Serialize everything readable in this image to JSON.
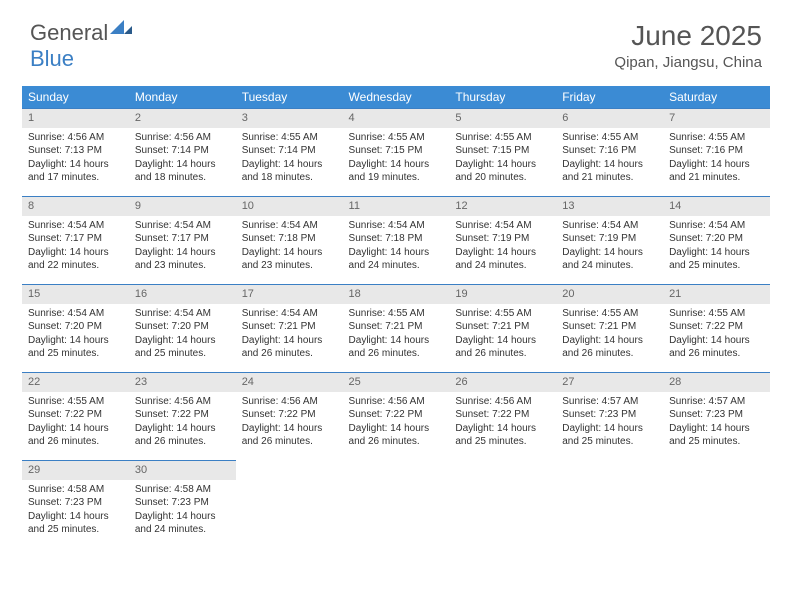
{
  "logo": {
    "text1": "General",
    "text2": "Blue"
  },
  "title": "June 2025",
  "location": "Qipan, Jiangsu, China",
  "colors": {
    "header_bg": "#3b8bd4",
    "header_text": "#ffffff",
    "daynum_bg": "#e8e8e8",
    "daynum_text": "#666666",
    "border": "#3b7fc4",
    "body_text": "#333333",
    "logo_gray": "#555555",
    "logo_blue": "#3b7fc4"
  },
  "typography": {
    "title_fontsize": 28,
    "location_fontsize": 15,
    "header_fontsize": 12,
    "daynum_fontsize": 11,
    "cell_fontsize": 10
  },
  "weekdays": [
    "Sunday",
    "Monday",
    "Tuesday",
    "Wednesday",
    "Thursday",
    "Friday",
    "Saturday"
  ],
  "weeks": [
    [
      {
        "n": "1",
        "sr": "4:56 AM",
        "ss": "7:13 PM",
        "dl": "14 hours and 17 minutes."
      },
      {
        "n": "2",
        "sr": "4:56 AM",
        "ss": "7:14 PM",
        "dl": "14 hours and 18 minutes."
      },
      {
        "n": "3",
        "sr": "4:55 AM",
        "ss": "7:14 PM",
        "dl": "14 hours and 18 minutes."
      },
      {
        "n": "4",
        "sr": "4:55 AM",
        "ss": "7:15 PM",
        "dl": "14 hours and 19 minutes."
      },
      {
        "n": "5",
        "sr": "4:55 AM",
        "ss": "7:15 PM",
        "dl": "14 hours and 20 minutes."
      },
      {
        "n": "6",
        "sr": "4:55 AM",
        "ss": "7:16 PM",
        "dl": "14 hours and 21 minutes."
      },
      {
        "n": "7",
        "sr": "4:55 AM",
        "ss": "7:16 PM",
        "dl": "14 hours and 21 minutes."
      }
    ],
    [
      {
        "n": "8",
        "sr": "4:54 AM",
        "ss": "7:17 PM",
        "dl": "14 hours and 22 minutes."
      },
      {
        "n": "9",
        "sr": "4:54 AM",
        "ss": "7:17 PM",
        "dl": "14 hours and 23 minutes."
      },
      {
        "n": "10",
        "sr": "4:54 AM",
        "ss": "7:18 PM",
        "dl": "14 hours and 23 minutes."
      },
      {
        "n": "11",
        "sr": "4:54 AM",
        "ss": "7:18 PM",
        "dl": "14 hours and 24 minutes."
      },
      {
        "n": "12",
        "sr": "4:54 AM",
        "ss": "7:19 PM",
        "dl": "14 hours and 24 minutes."
      },
      {
        "n": "13",
        "sr": "4:54 AM",
        "ss": "7:19 PM",
        "dl": "14 hours and 24 minutes."
      },
      {
        "n": "14",
        "sr": "4:54 AM",
        "ss": "7:20 PM",
        "dl": "14 hours and 25 minutes."
      }
    ],
    [
      {
        "n": "15",
        "sr": "4:54 AM",
        "ss": "7:20 PM",
        "dl": "14 hours and 25 minutes."
      },
      {
        "n": "16",
        "sr": "4:54 AM",
        "ss": "7:20 PM",
        "dl": "14 hours and 25 minutes."
      },
      {
        "n": "17",
        "sr": "4:54 AM",
        "ss": "7:21 PM",
        "dl": "14 hours and 26 minutes."
      },
      {
        "n": "18",
        "sr": "4:55 AM",
        "ss": "7:21 PM",
        "dl": "14 hours and 26 minutes."
      },
      {
        "n": "19",
        "sr": "4:55 AM",
        "ss": "7:21 PM",
        "dl": "14 hours and 26 minutes."
      },
      {
        "n": "20",
        "sr": "4:55 AM",
        "ss": "7:21 PM",
        "dl": "14 hours and 26 minutes."
      },
      {
        "n": "21",
        "sr": "4:55 AM",
        "ss": "7:22 PM",
        "dl": "14 hours and 26 minutes."
      }
    ],
    [
      {
        "n": "22",
        "sr": "4:55 AM",
        "ss": "7:22 PM",
        "dl": "14 hours and 26 minutes."
      },
      {
        "n": "23",
        "sr": "4:56 AM",
        "ss": "7:22 PM",
        "dl": "14 hours and 26 minutes."
      },
      {
        "n": "24",
        "sr": "4:56 AM",
        "ss": "7:22 PM",
        "dl": "14 hours and 26 minutes."
      },
      {
        "n": "25",
        "sr": "4:56 AM",
        "ss": "7:22 PM",
        "dl": "14 hours and 26 minutes."
      },
      {
        "n": "26",
        "sr": "4:56 AM",
        "ss": "7:22 PM",
        "dl": "14 hours and 25 minutes."
      },
      {
        "n": "27",
        "sr": "4:57 AM",
        "ss": "7:23 PM",
        "dl": "14 hours and 25 minutes."
      },
      {
        "n": "28",
        "sr": "4:57 AM",
        "ss": "7:23 PM",
        "dl": "14 hours and 25 minutes."
      }
    ],
    [
      {
        "n": "29",
        "sr": "4:58 AM",
        "ss": "7:23 PM",
        "dl": "14 hours and 25 minutes."
      },
      {
        "n": "30",
        "sr": "4:58 AM",
        "ss": "7:23 PM",
        "dl": "14 hours and 24 minutes."
      },
      null,
      null,
      null,
      null,
      null
    ]
  ],
  "labels": {
    "sunrise": "Sunrise: ",
    "sunset": "Sunset: ",
    "daylight": "Daylight: "
  }
}
